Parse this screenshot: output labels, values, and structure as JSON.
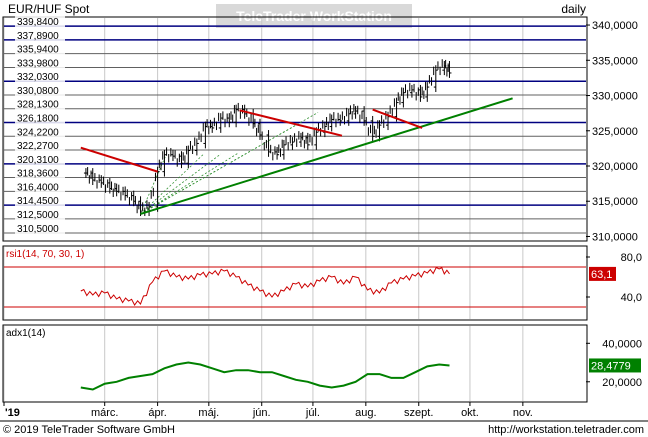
{
  "header": {
    "symbol": "EUR/HUF Spot",
    "watermark": "TeleTrader WorkStation",
    "interval": "daily"
  },
  "footer": {
    "copyright": "© 2019 TeleTrader Software GmbH",
    "url": "http://workstation.teletrader.com"
  },
  "colors": {
    "price": "#000000",
    "fib_lines": "#000080",
    "grid": "#c8c8c8",
    "up_trend": "#008000",
    "down_trend": "#cc0000",
    "fan": "#2f8f2f",
    "rsi": "#cc0000",
    "rsi_levels": "#cc0000",
    "adx": "#008000",
    "rsi_badge": "#cc0000",
    "adx_badge": "#008000"
  },
  "chart_data": [
    {
      "type": "line",
      "panel": "price",
      "title": "EUR/HUF Spot",
      "x_ticks": [
        "'19",
        "márc.",
        "ápr.",
        "máj.",
        "jún.",
        "júl.",
        "aug.",
        "szept.",
        "okt.",
        "nov."
      ],
      "y_ticks": [
        "310,0000",
        "315,0000",
        "320,0000",
        "325,0000",
        "330,0000",
        "335,0000",
        "340,0000"
      ],
      "ylim": [
        309.5,
        341.0
      ],
      "grid": true,
      "fib_levels": [
        "339,8400",
        "337,8900",
        "335,9400",
        "333,9800",
        "332,0300",
        "330,0800",
        "328,1300",
        "326,1800",
        "324,2200",
        "322,2700",
        "320,3100",
        "318,3600",
        "316,4000",
        "314,4500",
        "312,5000",
        "310,5000"
      ],
      "fib_values": [
        339.84,
        337.89,
        335.94,
        333.98,
        332.03,
        330.08,
        328.13,
        326.18,
        324.22,
        322.27,
        320.31,
        318.36,
        316.4,
        314.45,
        312.5,
        310.5
      ],
      "series": [
        {
          "style": "bar",
          "x": [
            "2019-02-18",
            "2019-02-22",
            "2019-02-27",
            "2019-03-04",
            "2019-03-08",
            "2019-03-13",
            "2019-03-18",
            "2019-03-22",
            "2019-03-27",
            "2019-04-01",
            "2019-04-05",
            "2019-04-10",
            "2019-04-15",
            "2019-04-19",
            "2019-04-24",
            "2019-04-29",
            "2019-05-03",
            "2019-05-08",
            "2019-05-13",
            "2019-05-17",
            "2019-05-22",
            "2019-05-27",
            "2019-05-31",
            "2019-06-05",
            "2019-06-10",
            "2019-06-14",
            "2019-06-19",
            "2019-06-24",
            "2019-06-28",
            "2019-07-03",
            "2019-07-08",
            "2019-07-12",
            "2019-07-17",
            "2019-07-22",
            "2019-07-26",
            "2019-07-31",
            "2019-08-05",
            "2019-08-09",
            "2019-08-14",
            "2019-08-19",
            "2019-08-23",
            "2019-08-28",
            "2019-09-02",
            "2019-09-06",
            "2019-09-11",
            "2019-09-16",
            "2019-09-19"
          ],
          "values": [
            319.0,
            318.0,
            317.6,
            316.8,
            316.4,
            315.8,
            315.0,
            313.6,
            314.2,
            319.2,
            321.6,
            321.4,
            320.4,
            322.2,
            323.2,
            325.6,
            325.4,
            326.8,
            326.2,
            328.0,
            327.4,
            326.0,
            324.4,
            322.0,
            321.6,
            323.0,
            323.4,
            324.0,
            323.0,
            324.8,
            325.6,
            326.6,
            326.4,
            327.4,
            327.8,
            326.4,
            324.2,
            325.8,
            327.0,
            329.0,
            330.4,
            330.8,
            329.8,
            331.2,
            333.6,
            334.2,
            333.2
          ]
        }
      ],
      "annotations": [
        {
          "kind": "trendline",
          "color": "up_trend",
          "from": [
            "2019-03-22",
            313.2
          ],
          "to": [
            "2019-10-26",
            329.6
          ]
        },
        {
          "kind": "trendline",
          "color": "down_trend",
          "from": [
            "2019-02-15",
            322.6
          ],
          "to": [
            "2019-04-01",
            319.2
          ]
        },
        {
          "kind": "trendline",
          "color": "down_trend",
          "from": [
            "2019-05-19",
            327.9
          ],
          "to": [
            "2019-07-18",
            324.3
          ]
        },
        {
          "kind": "trendline",
          "color": "down_trend",
          "from": [
            "2019-08-05",
            328.0
          ],
          "to": [
            "2019-09-03",
            325.4
          ]
        }
      ],
      "fan_lines": {
        "origin": [
          "2019-03-22",
          313.2
        ],
        "targets": [
          [
            "2019-04-06",
            321.6
          ],
          [
            "2019-04-28",
            321.7
          ],
          [
            "2019-05-08",
            321.7
          ],
          [
            "2019-05-18",
            321.8
          ],
          [
            "2019-06-24",
            326.2
          ],
          [
            "2019-07-04",
            327.6
          ]
        ]
      }
    },
    {
      "type": "line",
      "panel": "rsi",
      "title": "rsi1(14, 70, 30, 1)",
      "y_ticks": [
        "40,0",
        "80,0"
      ],
      "ylim": [
        18,
        90
      ],
      "levels": [
        30,
        70
      ],
      "last_value": "63,1",
      "series": [
        {
          "x": [
            "2019-02-15",
            "2019-02-22",
            "2019-03-01",
            "2019-03-08",
            "2019-03-15",
            "2019-03-22",
            "2019-03-29",
            "2019-04-05",
            "2019-04-12",
            "2019-04-19",
            "2019-04-26",
            "2019-05-03",
            "2019-05-10",
            "2019-05-17",
            "2019-05-24",
            "2019-05-31",
            "2019-06-07",
            "2019-06-14",
            "2019-06-21",
            "2019-06-28",
            "2019-07-05",
            "2019-07-12",
            "2019-07-19",
            "2019-07-26",
            "2019-08-02",
            "2019-08-09",
            "2019-08-16",
            "2019-08-23",
            "2019-08-30",
            "2019-09-06",
            "2019-09-13",
            "2019-09-19"
          ],
          "values": [
            46,
            42,
            44,
            38,
            36,
            33,
            55,
            66,
            60,
            58,
            62,
            63,
            66,
            60,
            52,
            46,
            40,
            46,
            53,
            50,
            56,
            60,
            53,
            60,
            47,
            44,
            54,
            58,
            61,
            64,
            68,
            63.1
          ]
        }
      ]
    },
    {
      "type": "line",
      "panel": "adx",
      "title": "adx1(14)",
      "y_ticks": [
        "20,0000",
        "40,0000"
      ],
      "ylim": [
        10,
        49
      ],
      "last_value": "28,4779",
      "series": [
        {
          "x": [
            "2019-02-15",
            "2019-02-22",
            "2019-03-01",
            "2019-03-08",
            "2019-03-15",
            "2019-03-22",
            "2019-03-29",
            "2019-04-05",
            "2019-04-12",
            "2019-04-19",
            "2019-04-26",
            "2019-05-03",
            "2019-05-10",
            "2019-05-17",
            "2019-05-24",
            "2019-05-31",
            "2019-06-07",
            "2019-06-14",
            "2019-06-21",
            "2019-06-28",
            "2019-07-05",
            "2019-07-12",
            "2019-07-19",
            "2019-07-26",
            "2019-08-02",
            "2019-08-09",
            "2019-08-16",
            "2019-08-23",
            "2019-08-30",
            "2019-09-06",
            "2019-09-13",
            "2019-09-19"
          ],
          "values": [
            17,
            16,
            19,
            20,
            22,
            23,
            24,
            27,
            29,
            30,
            29,
            27,
            25,
            26,
            26,
            25,
            25,
            23,
            21,
            20,
            18,
            17,
            18,
            20,
            24,
            24,
            22,
            22,
            25,
            28,
            29,
            28.4779
          ]
        }
      ]
    }
  ]
}
